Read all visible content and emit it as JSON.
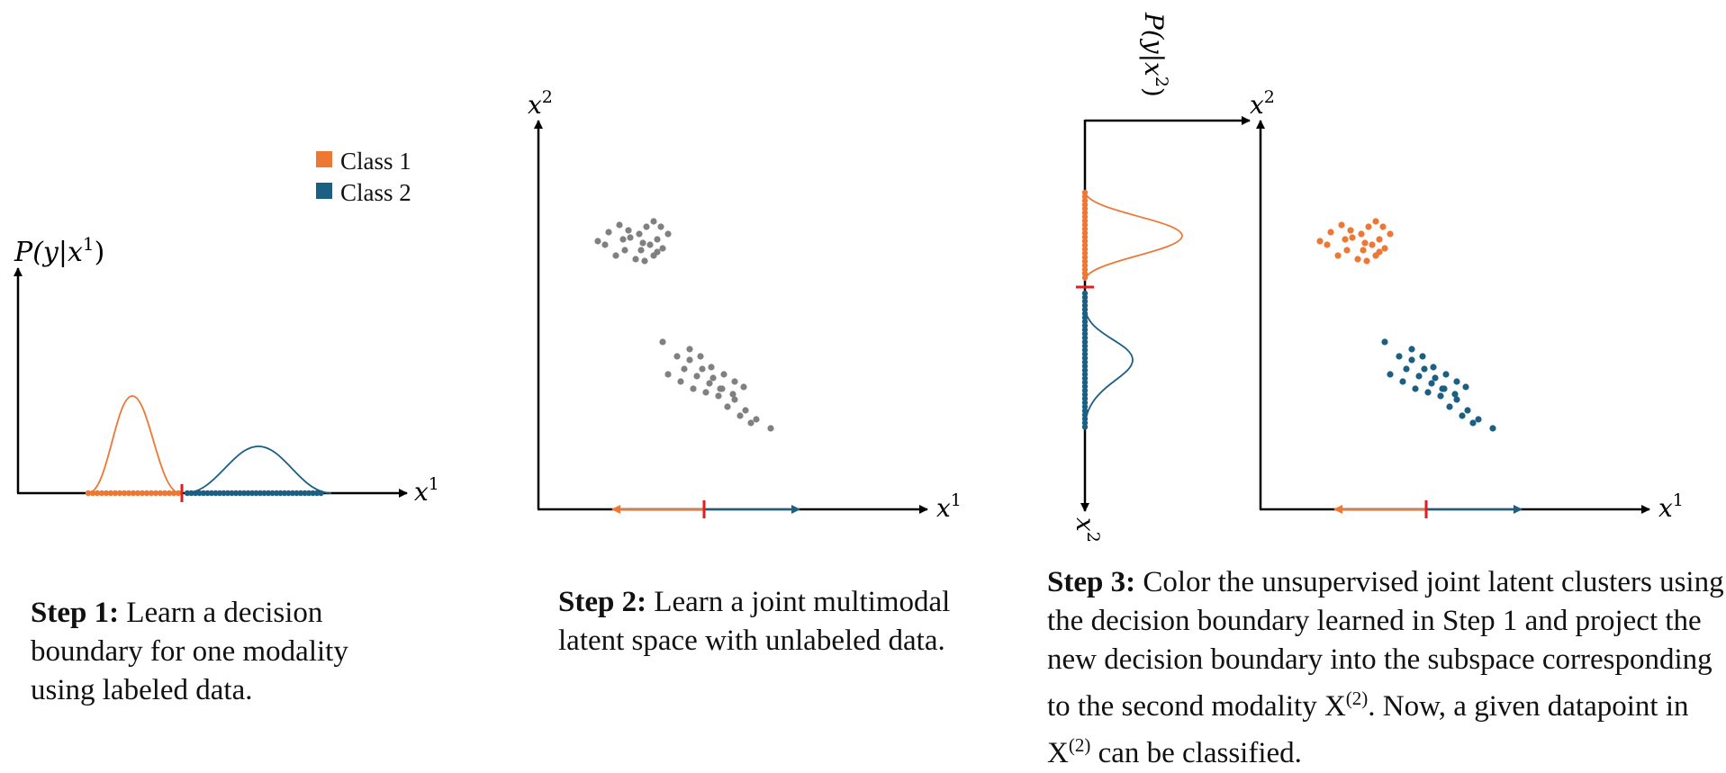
{
  "colors": {
    "class1": "#ED7733",
    "class2": "#1B5F83",
    "unlabeled": "#808080",
    "boundary": "#E41E1E",
    "axis": "#000000"
  },
  "legend": {
    "class1": "Class 1",
    "class2": "Class 2"
  },
  "panel1": {
    "ylabel_p": "P",
    "ylabel_args": "(y|x",
    "ylabel_sup": "1",
    "ylabel_close": ")",
    "xlabel": "x",
    "xlabel_sup": "1"
  },
  "panel2": {
    "ylabel": "x",
    "ylabel_sup": "2",
    "xlabel": "x",
    "xlabel_sup": "1"
  },
  "panel3": {
    "projection_label": "P(y|x",
    "projection_sup": "2",
    "projection_close": ")",
    "proj_axis_label": "x",
    "proj_axis_sup": "2",
    "ylabel": "x",
    "ylabel_sup": "2",
    "xlabel": "x",
    "xlabel_sup": "1"
  },
  "captions": {
    "step1_bold": "Step 1:",
    "step1_text": " Learn a decision boundary for one modality using labeled data.",
    "step2_bold": "Step 2:",
    "step2_text": " Learn a joint multimodal latent space with unlabeled data.",
    "step3_bold": "Step 3:",
    "step3_text_a": " Color the unsupervised joint latent clusters using the decision boundary learned in Step 1 and project the new decision boundary into the subspace corresponding to the second modality X",
    "step3_sup_a": "(2)",
    "step3_text_b": ". Now, a given datapoint in X",
    "step3_sup_b": "(2)",
    "step3_text_c": " can be classified."
  }
}
